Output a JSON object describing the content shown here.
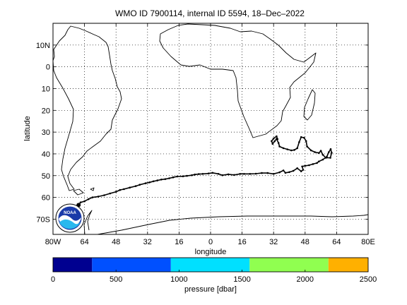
{
  "chart_data": {
    "type": "map",
    "title": "WMO ID 7900114, internal ID 5594, 18–Dec–2022",
    "xlabel": "longitude",
    "ylabel": "latitude",
    "xlim": [
      -80,
      80
    ],
    "ylim": [
      -77,
      20
    ],
    "x_ticks": [
      {
        "value": -80,
        "label": "80W"
      },
      {
        "value": -64,
        "label": "64"
      },
      {
        "value": -48,
        "label": "48"
      },
      {
        "value": -32,
        "label": "32"
      },
      {
        "value": -16,
        "label": "16"
      },
      {
        "value": 0,
        "label": "0"
      },
      {
        "value": 16,
        "label": "16"
      },
      {
        "value": 32,
        "label": "32"
      },
      {
        "value": 48,
        "label": "48"
      },
      {
        "value": 64,
        "label": "64"
      },
      {
        "value": 80,
        "label": "80E"
      }
    ],
    "y_ticks": [
      {
        "value": 10,
        "label": "10N"
      },
      {
        "value": 0,
        "label": "0"
      },
      {
        "value": -10,
        "label": "10"
      },
      {
        "value": -20,
        "label": "20"
      },
      {
        "value": -30,
        "label": "30"
      },
      {
        "value": -40,
        "label": "40"
      },
      {
        "value": -50,
        "label": "50"
      },
      {
        "value": -60,
        "label": "60"
      },
      {
        "value": -70,
        "label": "70S"
      }
    ],
    "grid": true,
    "grid_style": "dotted",
    "logo": "NOAA",
    "float_track": [
      [
        -67,
        -63.5
      ],
      [
        -66,
        -62.3
      ],
      [
        -64,
        -61.8
      ],
      [
        -62,
        -60.8
      ],
      [
        -60,
        -60
      ],
      [
        -57,
        -59.6
      ],
      [
        -54,
        -59
      ],
      [
        -51,
        -58.2
      ],
      [
        -48,
        -57.4
      ],
      [
        -46,
        -56.6
      ],
      [
        -44,
        -56.2
      ],
      [
        -41,
        -55.5
      ],
      [
        -38,
        -54.8
      ],
      [
        -36,
        -54.2
      ],
      [
        -33,
        -53.5
      ],
      [
        -31,
        -53.1
      ],
      [
        -29,
        -52.6
      ],
      [
        -27,
        -52.2
      ],
      [
        -25,
        -51.8
      ],
      [
        -23,
        -51.6
      ],
      [
        -21,
        -51.2
      ],
      [
        -19,
        -50.8
      ],
      [
        -17,
        -50.4
      ],
      [
        -14,
        -50.3
      ],
      [
        -12,
        -50.1
      ],
      [
        -9.5,
        -49.8
      ],
      [
        -8,
        -49.5
      ],
      [
        -6,
        -49.3
      ],
      [
        -4,
        -49.2
      ],
      [
        -1,
        -49
      ],
      [
        1,
        -48.7
      ],
      [
        4,
        -49.2
      ],
      [
        6,
        -49.8
      ],
      [
        9,
        -49.4
      ],
      [
        12,
        -49.7
      ],
      [
        15,
        -49.2
      ],
      [
        17,
        -49.2
      ],
      [
        20,
        -49.2
      ],
      [
        23,
        -49.1
      ],
      [
        26,
        -48.8
      ],
      [
        29,
        -48.8
      ],
      [
        32,
        -49.2
      ],
      [
        35,
        -48.5
      ],
      [
        37,
        -47.6
      ],
      [
        38,
        -48.7
      ],
      [
        40,
        -48.4
      ],
      [
        42,
        -47.8
      ],
      [
        44,
        -46.6
      ],
      [
        46,
        -48
      ],
      [
        47,
        -47.3
      ],
      [
        46.5,
        -45.8
      ],
      [
        48,
        -45.5
      ],
      [
        50,
        -45.2
      ],
      [
        52,
        -44.7
      ],
      [
        54,
        -44.2
      ],
      [
        55,
        -43.5
      ],
      [
        57,
        -42.6
      ],
      [
        59,
        -41.3
      ],
      [
        60,
        -39.2
      ],
      [
        61,
        -37.8
      ],
      [
        61.5,
        -39.5
      ],
      [
        60.8,
        -41.8
      ],
      [
        58.5,
        -41.8
      ],
      [
        57,
        -40.4
      ],
      [
        56,
        -38.6
      ],
      [
        55,
        -39.6
      ],
      [
        53,
        -39.2
      ],
      [
        51,
        -38.4
      ],
      [
        49,
        -36.6
      ],
      [
        48.5,
        -34.1
      ],
      [
        47.5,
        -32.6
      ],
      [
        46,
        -32.3
      ],
      [
        45,
        -34.6
      ],
      [
        44,
        -37.4
      ],
      [
        42.5,
        -38.2
      ],
      [
        41,
        -38.4
      ],
      [
        39,
        -37.9
      ],
      [
        37,
        -37.4
      ],
      [
        35,
        -36.6
      ],
      [
        34.5,
        -35
      ],
      [
        33.5,
        -33.1
      ],
      [
        32.5,
        -34.2
      ],
      [
        31.5,
        -35.4
      ],
      [
        31,
        -34.1
      ],
      [
        32,
        -32.9
      ],
      [
        33.5,
        -31.9
      ],
      [
        34,
        -33.2
      ]
    ],
    "colorbar": {
      "label": "pressure [dbar]",
      "range": [
        0,
        2500
      ],
      "ticks": [
        0,
        500,
        1000,
        1500,
        2000,
        2500
      ],
      "bands": [
        {
          "from": 0,
          "to": 310,
          "color": "#000090"
        },
        {
          "from": 310,
          "to": 935,
          "color": "#0050ff"
        },
        {
          "from": 935,
          "to": 1560,
          "color": "#00e0ff"
        },
        {
          "from": 1560,
          "to": 2185,
          "color": "#90ff50"
        },
        {
          "from": 2185,
          "to": 2500,
          "color": "#ffb000"
        }
      ]
    }
  }
}
